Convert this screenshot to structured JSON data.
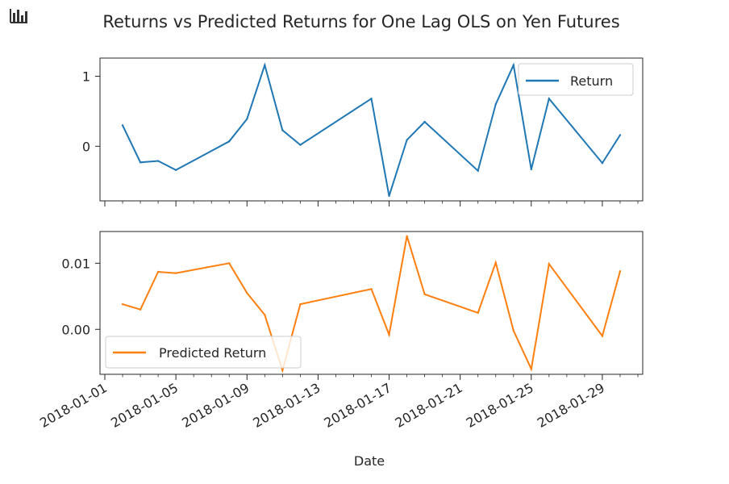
{
  "toolbar": {
    "icon": "bar-chart-icon"
  },
  "chart_data": [
    {
      "type": "line",
      "title": "Returns vs Predicted Returns for One Lag OLS on Yen Futures",
      "xlabel": "Date",
      "ylabel": "",
      "x": [
        "2018-01-02",
        "2018-01-03",
        "2018-01-04",
        "2018-01-05",
        "2018-01-08",
        "2018-01-09",
        "2018-01-10",
        "2018-01-11",
        "2018-01-12",
        "2018-01-16",
        "2018-01-17",
        "2018-01-18",
        "2018-01-19",
        "2018-01-22",
        "2018-01-23",
        "2018-01-24",
        "2018-01-25",
        "2018-01-26",
        "2018-01-29",
        "2018-01-30"
      ],
      "series": [
        {
          "name": "Return",
          "color": "#1f77b4",
          "values": [
            0.3,
            -0.23,
            -0.21,
            -0.34,
            0.07,
            0.39,
            1.16,
            0.23,
            0.02,
            0.68,
            -0.71,
            0.09,
            0.35,
            -0.35,
            0.6,
            1.16,
            -0.33,
            0.68,
            -0.24,
            0.16
          ]
        }
      ],
      "yticks": [
        0,
        1
      ],
      "ylim": [
        -0.78,
        1.26
      ],
      "legend": "top-right",
      "grid": false
    },
    {
      "type": "line",
      "xlabel": "Date",
      "ylabel": "",
      "x": [
        "2018-01-02",
        "2018-01-03",
        "2018-01-04",
        "2018-01-05",
        "2018-01-08",
        "2018-01-09",
        "2018-01-10",
        "2018-01-11",
        "2018-01-12",
        "2018-01-16",
        "2018-01-17",
        "2018-01-18",
        "2018-01-19",
        "2018-01-22",
        "2018-01-23",
        "2018-01-24",
        "2018-01-25",
        "2018-01-26",
        "2018-01-29",
        "2018-01-30"
      ],
      "series": [
        {
          "name": "Predicted Return",
          "color": "#ff7f0e",
          "values": [
            0.0038,
            0.003,
            0.0087,
            0.0085,
            0.01,
            0.0055,
            0.0022,
            -0.0062,
            0.0038,
            0.0061,
            -0.0008,
            0.0141,
            0.0053,
            0.0025,
            0.0101,
            -0.0002,
            -0.006,
            0.0099,
            -0.001,
            0.0088
          ]
        }
      ],
      "yticks": [
        0.0,
        0.01
      ],
      "ytick_labels": [
        "0.00",
        "0.01"
      ],
      "ylim": [
        -0.0068,
        0.0148
      ],
      "xticks": [
        "2018-01-01",
        "2018-01-05",
        "2018-01-09",
        "2018-01-13",
        "2018-01-17",
        "2018-01-21",
        "2018-01-25",
        "2018-01-29"
      ],
      "xlim": [
        "2018-01-01",
        "2018-01-31"
      ],
      "legend": "bottom-left",
      "grid": false
    }
  ]
}
